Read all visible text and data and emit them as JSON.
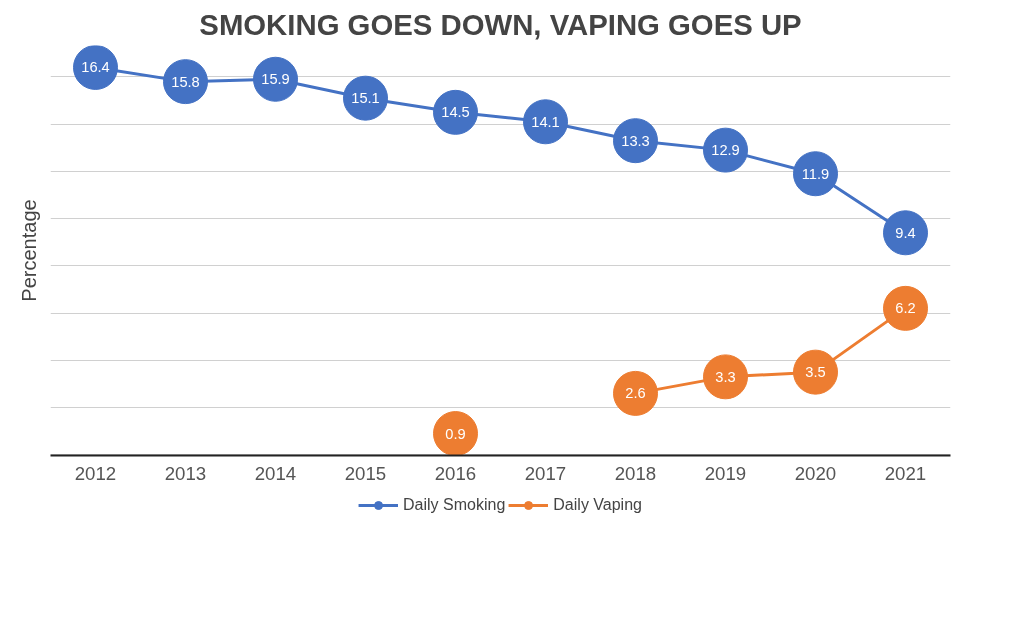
{
  "chart_data": {
    "type": "line",
    "title": "SMOKING GOES DOWN, VAPING GOES UP",
    "ylabel": "Percentage",
    "categories": [
      "2012",
      "2013",
      "2014",
      "2015",
      "2016",
      "2017",
      "2018",
      "2019",
      "2020",
      "2021"
    ],
    "series": [
      {
        "name": "Daily Smoking",
        "color": "#4472c4",
        "values": [
          16.4,
          15.8,
          15.9,
          15.1,
          14.5,
          14.1,
          13.3,
          12.9,
          11.9,
          9.4
        ]
      },
      {
        "name": "Daily Vaping",
        "color": "#ed7d31",
        "values": [
          null,
          null,
          null,
          null,
          0.9,
          null,
          2.6,
          3.3,
          3.5,
          6.2
        ]
      }
    ],
    "tick_labels": "x",
    "grid": "y",
    "legend": "bottom",
    "marker": "circle",
    "line_style": "solid",
    "data_labels": true
  }
}
